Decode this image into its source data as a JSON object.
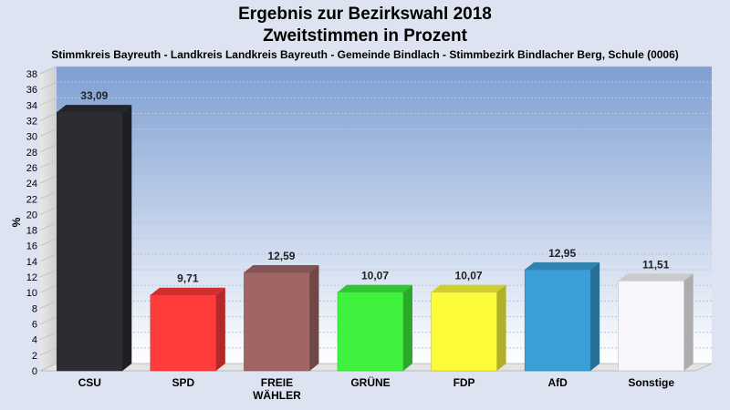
{
  "header": {
    "title_line1": "Ergebnis zur Bezirkswahl 2018",
    "title_line2": "Zweitstimmen in Prozent",
    "subtitle": "Stimmkreis Bayreuth - Landkreis Landkreis Bayreuth - Gemeinde Bindlach - Stimmbezirk Bindlacher Berg, Schule (0006)"
  },
  "chart_data": {
    "type": "bar",
    "title": "Ergebnis zur Bezirkswahl 2018 – Zweitstimmen in Prozent",
    "subtitle": "Stimmkreis Bayreuth - Landkreis Landkreis Bayreuth - Gemeinde Bindlach - Stimmbezirk Bindlacher Berg, Schule (0006)",
    "xlabel": "",
    "ylabel": "%",
    "ylim": [
      0,
      38
    ],
    "ytick_step": 2,
    "grid": true,
    "categories": [
      [
        "CSU"
      ],
      [
        "SPD"
      ],
      [
        "FREIE",
        "WÄHLER"
      ],
      [
        "GRÜNE"
      ],
      [
        "FDP"
      ],
      [
        "AfD"
      ],
      [
        "Sonstige"
      ]
    ],
    "values": [
      33.09,
      9.71,
      12.59,
      10.07,
      10.07,
      12.95,
      11.51
    ],
    "value_labels": [
      "33,09",
      "9,71",
      "12,59",
      "10,07",
      "10,07",
      "12,95",
      "11,51"
    ],
    "colors": [
      "#2b2d33",
      "#ff3b3b",
      "#a06565",
      "#3ef23e",
      "#fbfb3a",
      "#3a9fd6",
      "#f7f7fb"
    ]
  }
}
